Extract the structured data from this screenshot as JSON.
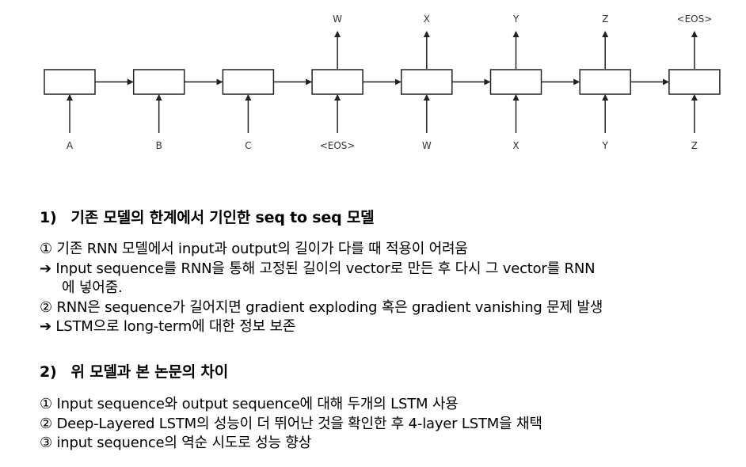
{
  "diagram": {
    "inputs": [
      "A",
      "B",
      "C",
      "<EOS>",
      "W",
      "X",
      "Y",
      "Z"
    ],
    "outputs": [
      "",
      "",
      "",
      "W",
      "X",
      "Y",
      "Z",
      "<EOS>"
    ]
  },
  "section1": {
    "number": "1)",
    "title": "기존 모델의 한계에서 기인한 seq to seq 모델",
    "lines": [
      "① 기존 RNN 모델에서 input과 output의 길이가 다를 때 적용이 어려움",
      "➔ Input sequence를 RNN을 통해 고정된 길이의 vector로 만든 후 다시 그 vector를 RNN",
      "에 넣어줌.",
      "② RNN은 sequence가 길어지면 gradient exploding 혹은 gradient vanishing 문제 발생",
      "➔ LSTM으로 long-term에 대한 정보 보존"
    ]
  },
  "section2": {
    "number": "2)",
    "title": "위 모델과 본 논문의 차이",
    "lines": [
      "① Input sequence와 output sequence에 대해 두개의 LSTM 사용",
      "② Deep-Layered LSTM의 성능이 더 뛰어난 것을 확인한 후 4-layer LSTM을 채택",
      "③ input sequence의 역순 시도로 성능 향상"
    ]
  }
}
